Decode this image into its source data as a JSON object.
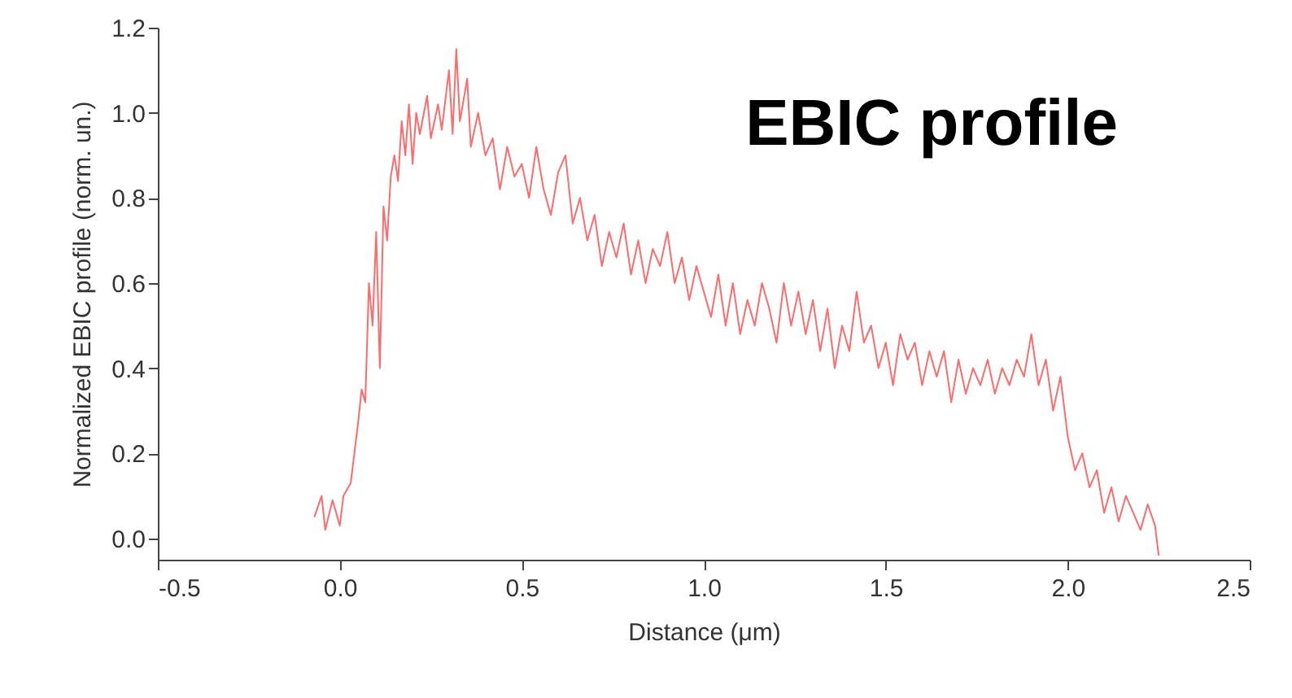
{
  "chart_data": {
    "type": "line",
    "xlabel": "Distance (μm)",
    "ylabel": "Normalized EBIC profile (norm. un.)",
    "annotations": [
      "EBIC profile"
    ],
    "xlim": [
      -0.5,
      2.5
    ],
    "xticks": [
      -0.5,
      {
        "value": 0,
        "label": "0.0"
      },
      0.5,
      {
        "value": 1,
        "label": "1.0"
      },
      1.5,
      {
        "value": 2,
        "label": "2.0"
      },
      2.5
    ],
    "ylim": [
      -0.05,
      1.2
    ],
    "yticks": [
      {
        "value": 0,
        "label": "0.0"
      },
      0.2,
      0.4,
      0.6,
      0.8,
      {
        "value": 1,
        "label": "1.0"
      },
      1.2
    ],
    "grid": false,
    "marker": "none",
    "line_style": "solid",
    "series": [
      {
        "color": "#ff6b6b",
        "x": [
          -0.07,
          -0.05,
          -0.04,
          -0.02,
          0.0,
          0.01,
          0.03,
          0.05,
          0.06,
          0.07,
          0.08,
          0.09,
          0.1,
          0.11,
          0.12,
          0.13,
          0.14,
          0.15,
          0.16,
          0.17,
          0.18,
          0.19,
          0.2,
          0.21,
          0.22,
          0.24,
          0.25,
          0.27,
          0.28,
          0.3,
          0.31,
          0.32,
          0.33,
          0.35,
          0.36,
          0.38,
          0.4,
          0.42,
          0.44,
          0.46,
          0.48,
          0.5,
          0.52,
          0.54,
          0.56,
          0.58,
          0.6,
          0.62,
          0.64,
          0.66,
          0.68,
          0.7,
          0.72,
          0.74,
          0.76,
          0.78,
          0.8,
          0.82,
          0.84,
          0.86,
          0.88,
          0.9,
          0.92,
          0.94,
          0.96,
          0.98,
          1.0,
          1.02,
          1.04,
          1.06,
          1.08,
          1.1,
          1.12,
          1.14,
          1.16,
          1.18,
          1.2,
          1.22,
          1.24,
          1.26,
          1.28,
          1.3,
          1.32,
          1.34,
          1.36,
          1.38,
          1.4,
          1.42,
          1.44,
          1.46,
          1.48,
          1.5,
          1.52,
          1.54,
          1.56,
          1.58,
          1.6,
          1.62,
          1.64,
          1.66,
          1.68,
          1.7,
          1.72,
          1.74,
          1.76,
          1.78,
          1.8,
          1.82,
          1.84,
          1.86,
          1.88,
          1.9,
          1.92,
          1.94,
          1.96,
          1.98,
          2.0,
          2.02,
          2.04,
          2.06,
          2.08,
          2.1,
          2.12,
          2.14,
          2.16,
          2.18,
          2.2,
          2.22,
          2.24,
          2.25
        ],
        "values": [
          0.05,
          0.1,
          0.02,
          0.09,
          0.03,
          0.1,
          0.13,
          0.27,
          0.35,
          0.32,
          0.6,
          0.5,
          0.72,
          0.4,
          0.78,
          0.7,
          0.85,
          0.9,
          0.84,
          0.98,
          0.9,
          1.02,
          0.88,
          1.0,
          0.95,
          1.04,
          0.94,
          1.02,
          0.96,
          1.1,
          0.95,
          1.15,
          0.98,
          1.08,
          0.92,
          1.0,
          0.9,
          0.94,
          0.82,
          0.92,
          0.85,
          0.88,
          0.8,
          0.92,
          0.82,
          0.76,
          0.86,
          0.9,
          0.74,
          0.8,
          0.7,
          0.76,
          0.64,
          0.72,
          0.66,
          0.74,
          0.62,
          0.7,
          0.6,
          0.68,
          0.64,
          0.72,
          0.6,
          0.66,
          0.56,
          0.64,
          0.58,
          0.52,
          0.62,
          0.5,
          0.6,
          0.48,
          0.56,
          0.5,
          0.6,
          0.54,
          0.46,
          0.6,
          0.5,
          0.58,
          0.48,
          0.56,
          0.44,
          0.54,
          0.4,
          0.5,
          0.44,
          0.58,
          0.46,
          0.5,
          0.4,
          0.46,
          0.36,
          0.48,
          0.42,
          0.46,
          0.36,
          0.44,
          0.38,
          0.44,
          0.32,
          0.42,
          0.34,
          0.4,
          0.36,
          0.42,
          0.34,
          0.4,
          0.36,
          0.42,
          0.38,
          0.48,
          0.36,
          0.42,
          0.3,
          0.38,
          0.24,
          0.16,
          0.2,
          0.12,
          0.16,
          0.06,
          0.12,
          0.04,
          0.1,
          0.06,
          0.02,
          0.08,
          0.03,
          -0.04
        ]
      }
    ]
  }
}
